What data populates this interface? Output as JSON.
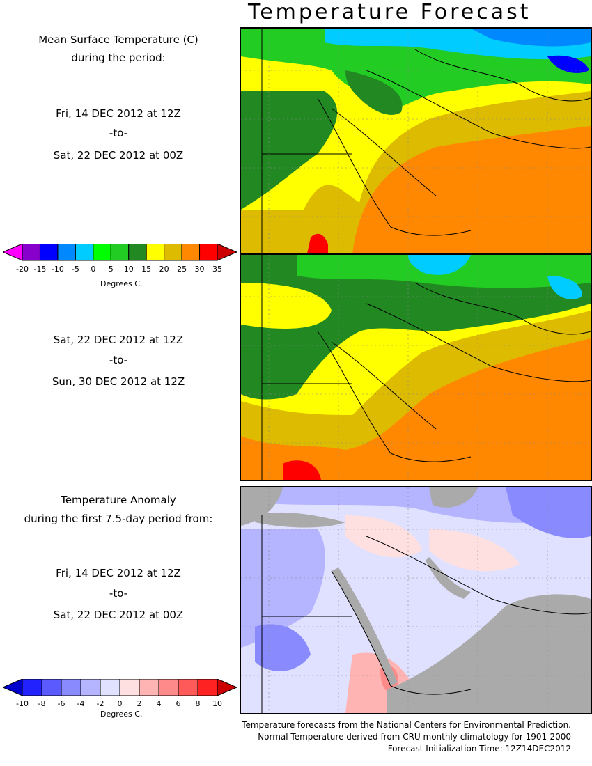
{
  "title": "Temperature Forecast",
  "panel1": {
    "heading1": "Mean Surface Temperature (C)",
    "heading2": "during the period:",
    "start": "Fri, 14 DEC 2012 at 12Z",
    "to": "-to-",
    "end": "Sat, 22 DEC 2012 at 00Z"
  },
  "panel2": {
    "start": "Sat, 22 DEC 2012 at 12Z",
    "to": "-to-",
    "end": "Sun, 30 DEC 2012 at 12Z"
  },
  "panel3": {
    "heading1": "Temperature Anomaly",
    "heading2": "during the first 7.5-day period from:",
    "start": "Fri, 14 DEC 2012 at 12Z",
    "to": "-to-",
    "end": "Sat, 22 DEC 2012 at 00Z"
  },
  "temp_colorbar": {
    "ticks": [
      "-20",
      "-15",
      "-10",
      "-5",
      "0",
      "5",
      "10",
      "15",
      "20",
      "25",
      "30",
      "35"
    ],
    "units": "Degrees C.",
    "colors": [
      "#ff00ff",
      "#8800cc",
      "#0000ff",
      "#0088ff",
      "#00ccff",
      "#00ff00",
      "#22cc22",
      "#228822",
      "#ffff00",
      "#ddbb00",
      "#ff8800",
      "#ff0000",
      "#cc0000"
    ]
  },
  "anom_colorbar": {
    "ticks": [
      "-10",
      "-8",
      "-6",
      "-4",
      "-2",
      "0",
      "2",
      "4",
      "6",
      "8",
      "10"
    ],
    "units": "Degrees C.",
    "colors": [
      "#0000cc",
      "#2222ff",
      "#5a5aff",
      "#8a8aff",
      "#b4b4ff",
      "#e0e0ff",
      "#ffe0e0",
      "#ffb4b4",
      "#ff8a8a",
      "#ff5a5a",
      "#ff2222",
      "#cc0000"
    ]
  },
  "credits": {
    "line1": "Temperature forecasts from the National Centers for Environmental Prediction.",
    "line2": "Normal Temperature derived from CRU monthly climatology for 1901-2000",
    "line3": "Forecast Initialization Time: 12Z14DEC2012"
  }
}
